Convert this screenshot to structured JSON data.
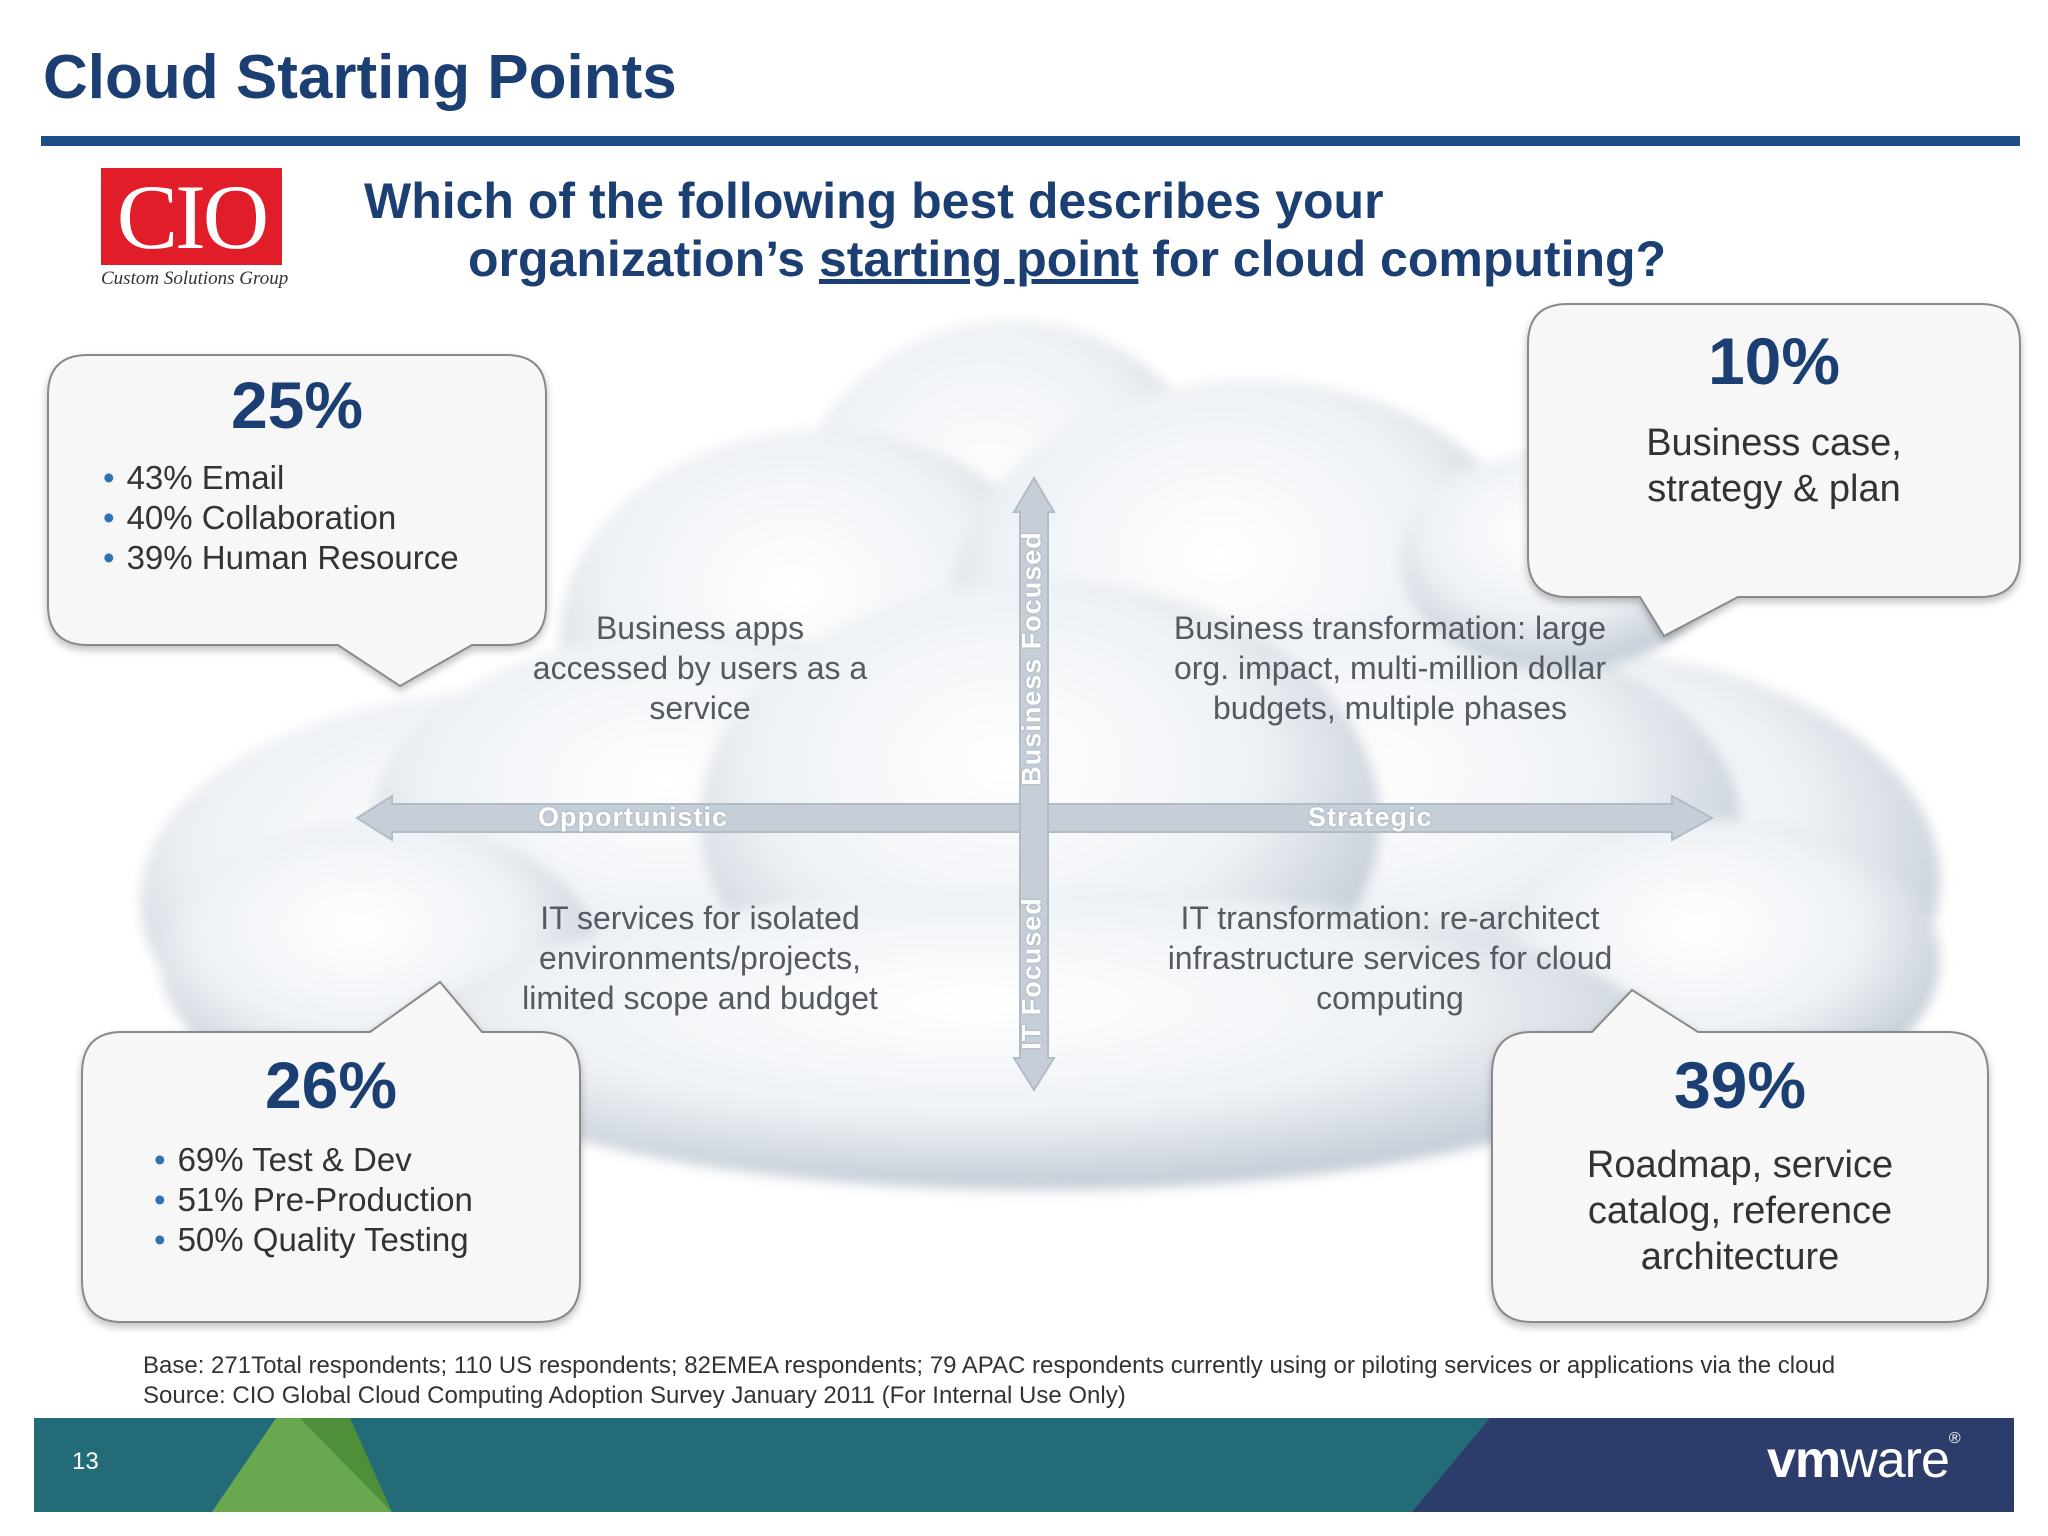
{
  "slide": {
    "title": "Cloud Starting Points",
    "page_number": "13",
    "question": {
      "line1": "Which of the following best describes your",
      "line2_before": "organization’s ",
      "line2_underlined": "starting point",
      "line2_after": " for cloud computing?"
    }
  },
  "logos": {
    "cio": {
      "letters": "CIO",
      "tagline": "Custom Solutions Group",
      "color": "#e11d2a"
    },
    "vmware": {
      "vm": "vm",
      "ware": "ware",
      "reg": "®"
    }
  },
  "axes": {
    "left": "Opportunistic",
    "right": "Strategic",
    "top": "Business Focused",
    "bottom": "IT Focused"
  },
  "quadrants": {
    "top_left": {
      "line1": "Business apps",
      "line2": "accessed by users as a",
      "line3": "service"
    },
    "top_right": {
      "line1": "Business transformation: large",
      "line2": "org. impact, multi-million dollar",
      "line3": "budgets, multiple phases"
    },
    "bottom_left": {
      "line1": "IT services for isolated",
      "line2": "environments/projects,",
      "line3": "limited scope and budget"
    },
    "bottom_right": {
      "line1": "IT transformation: re-architect",
      "line2": "infrastructure services for cloud",
      "line3": "computing"
    }
  },
  "callouts": {
    "top_left": {
      "percent": "25%",
      "items": [
        "43% Email",
        "40% Collaboration",
        "39% Human Resource"
      ]
    },
    "top_right": {
      "percent": "10%",
      "line1": "Business case,",
      "line2": "strategy & plan"
    },
    "bottom_left": {
      "percent": "26%",
      "items": [
        "69% Test & Dev",
        "51% Pre-Production",
        "50% Quality Testing"
      ]
    },
    "bottom_right": {
      "percent": "39%",
      "line1": "Roadmap, service",
      "line2": "catalog, reference",
      "line3": "architecture"
    }
  },
  "footnote": {
    "base": "Base: 271Total respondents; 110 US respondents; 82EMEA respondents; 79 APAC respondents currently using or piloting services or applications via the cloud",
    "source": "Source: CIO Global Cloud Computing Adoption Survey January 2011 (For Internal Use Only)"
  },
  "colors": {
    "title": "#1b3f72",
    "rule": "#1d4e86",
    "bullet": "#2d74b5",
    "footer_green": "#6aa84f",
    "footer_teal": "#236b77",
    "footer_navy": "#2c3d6b"
  },
  "bullet_glyph": "•"
}
